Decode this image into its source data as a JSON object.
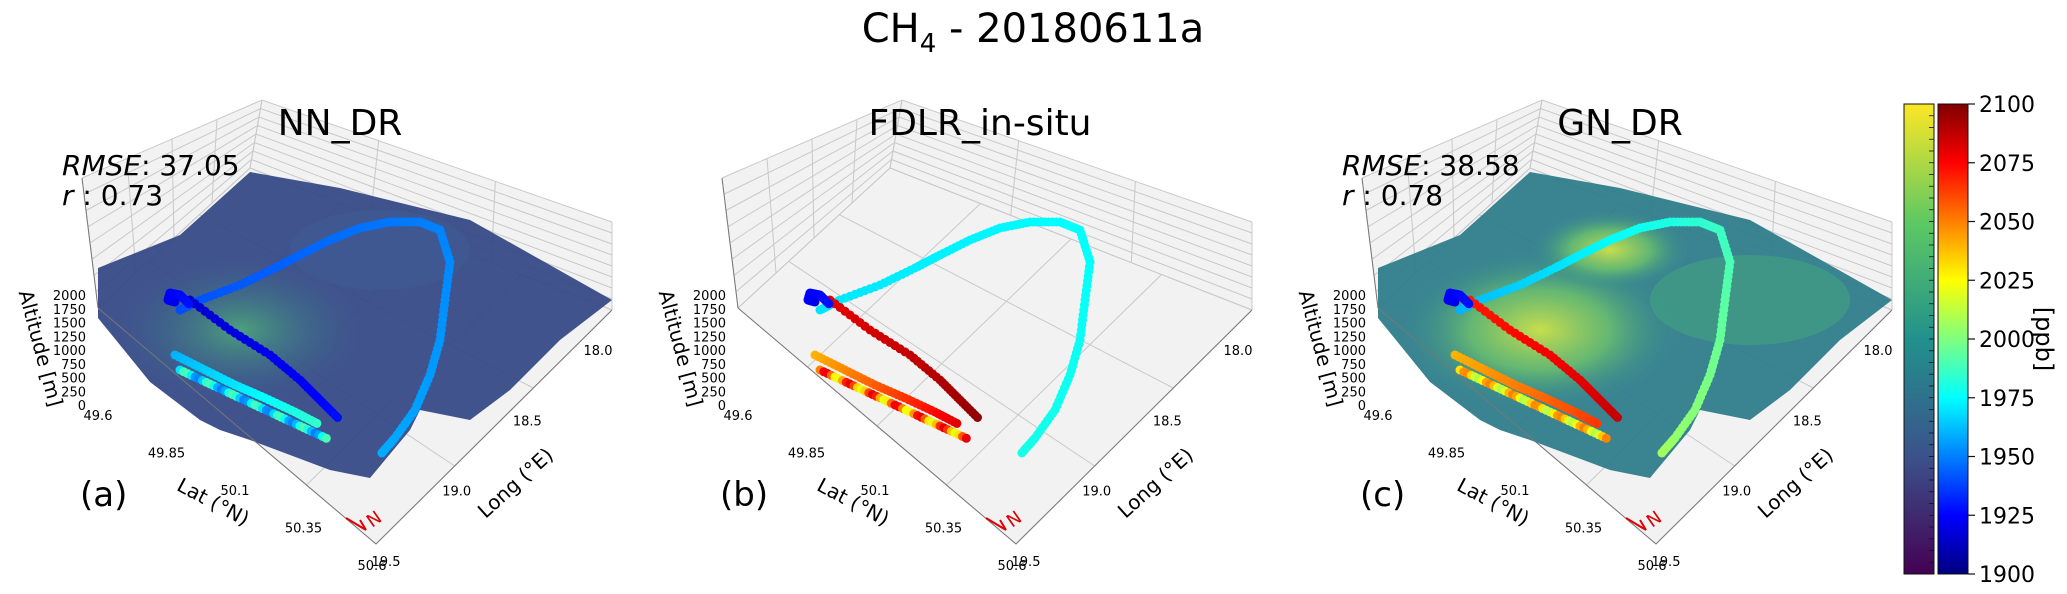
{
  "figure": {
    "title_main": "CH",
    "title_sub": "4",
    "title_rest": " - 20180611a"
  },
  "colors": {
    "grid_pane": "#f2f2f2",
    "grid_line": "#c9c9c9",
    "compass": "#e00000",
    "surface_dark": "#3a4a8a",
    "surface_mid": "#2f6b8c",
    "surface_green": "#5cc16e"
  },
  "chart_data": [
    {
      "type": "scatter",
      "panel_label": "(a)",
      "title": "NN_DR",
      "metrics": {
        "rmse_label": "RMSE",
        "rmse_value": ": 37.05",
        "r_label": "r",
        "r_value": " : 0.73"
      },
      "xlabel": "Lat (°N)",
      "ylabel": "Long (°E)",
      "zlabel": "Altitude [m]",
      "lat_ticks": [
        "49.6",
        "49.85",
        "50.1",
        "50.35",
        "50.6"
      ],
      "long_ticks": [
        "18.0",
        "18.5",
        "19.0",
        "19.5"
      ],
      "alt_ticks": [
        "0",
        "250",
        "500",
        "750",
        "1000",
        "1250",
        "1500",
        "1750",
        "2000"
      ],
      "surface": "modelled CH4 field",
      "compass": "N"
    },
    {
      "type": "scatter",
      "panel_label": "(b)",
      "title": "FDLR_in-situ",
      "xlabel": "Lat (°N)",
      "ylabel": "Long (°E)",
      "zlabel": "Altitude [m]",
      "lat_ticks": [
        "49.6",
        "49.85",
        "50.1",
        "50.35",
        "50.6"
      ],
      "long_ticks": [
        "18.0",
        "18.5",
        "19.0",
        "19.5"
      ],
      "alt_ticks": [
        "0",
        "250",
        "500",
        "750",
        "1000",
        "1250",
        "1500",
        "1750",
        "2000"
      ],
      "compass": "N"
    },
    {
      "type": "scatter",
      "panel_label": "(c)",
      "title": "GN_DR",
      "metrics": {
        "rmse_label": "RMSE",
        "rmse_value": ": 38.58",
        "r_label": "r",
        "r_value": " : 0.78"
      },
      "xlabel": "Lat (°N)",
      "ylabel": "Long (°E)",
      "zlabel": "Altitude [m]",
      "lat_ticks": [
        "49.6",
        "49.85",
        "50.1",
        "50.35",
        "50.6"
      ],
      "long_ticks": [
        "18.0",
        "18.5",
        "19.0",
        "19.5"
      ],
      "alt_ticks": [
        "0",
        "250",
        "500",
        "750",
        "1000",
        "1250",
        "1500",
        "1750",
        "2000"
      ],
      "surface": "modelled CH4 field",
      "compass": "N"
    }
  ],
  "colorbar": {
    "label": "[ppb]",
    "range": [
      1900,
      2100
    ],
    "ticks": [
      "1900",
      "1925",
      "1950",
      "1975",
      "2000",
      "2025",
      "2050",
      "2075",
      "2100"
    ],
    "surface_colormap": "viridis",
    "track_colormap": "jet"
  }
}
